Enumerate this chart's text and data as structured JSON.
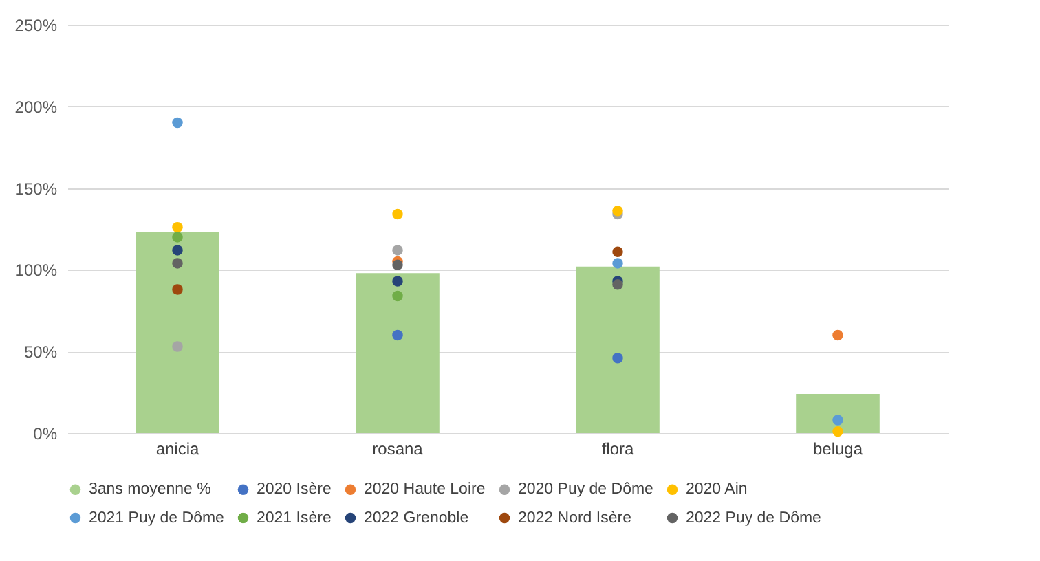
{
  "chart_data": {
    "type": "bar",
    "categories": [
      "anicia",
      "rosana",
      "flora",
      "beluga"
    ],
    "series": [
      {
        "name": "3ans moyenne %",
        "color": "#a9d18e",
        "values": [
          123,
          98,
          102,
          24
        ]
      },
      {
        "name": "2020 Isère",
        "type": "scatter",
        "color": "#4472c4",
        "values": [
          null,
          60,
          46,
          null
        ]
      },
      {
        "name": "2020 Haute Loire",
        "type": "scatter",
        "color": "#ed7d31",
        "values": [
          null,
          105,
          null,
          60
        ]
      },
      {
        "name": "2020 Puy de Dôme",
        "type": "scatter",
        "color": "#a5a5a5",
        "values": [
          53,
          112,
          134,
          null
        ]
      },
      {
        "name": "2020 Ain",
        "type": "scatter",
        "color": "#ffc000",
        "values": [
          126,
          134,
          136,
          1
        ]
      },
      {
        "name": "2021 Puy de Dôme",
        "type": "scatter",
        "color": "#5b9bd5",
        "values": [
          190,
          null,
          104,
          8
        ]
      },
      {
        "name": "2021 Isère",
        "type": "scatter",
        "color": "#70ad47",
        "values": [
          120,
          84,
          null,
          null
        ]
      },
      {
        "name": "2022 Grenoble",
        "type": "scatter",
        "color": "#264478",
        "values": [
          112,
          93,
          93,
          null
        ]
      },
      {
        "name": "2022 Nord Isère",
        "type": "scatter",
        "color": "#9e480e",
        "values": [
          88,
          null,
          111,
          null
        ]
      },
      {
        "name": "2022 Puy de Dôme",
        "type": "scatter",
        "color": "#636363",
        "values": [
          104,
          103,
          91,
          null
        ]
      }
    ],
    "ylim": [
      0,
      250
    ],
    "yticks": [
      {
        "value": 0,
        "label": "0%"
      },
      {
        "value": 50,
        "label": "50%"
      },
      {
        "value": 100,
        "label": "100%"
      },
      {
        "value": 150,
        "label": "150%"
      },
      {
        "value": 200,
        "label": "200%"
      },
      {
        "value": 250,
        "label": "250%"
      }
    ],
    "grid": "y",
    "legend": "bottom",
    "marker": "circle"
  }
}
